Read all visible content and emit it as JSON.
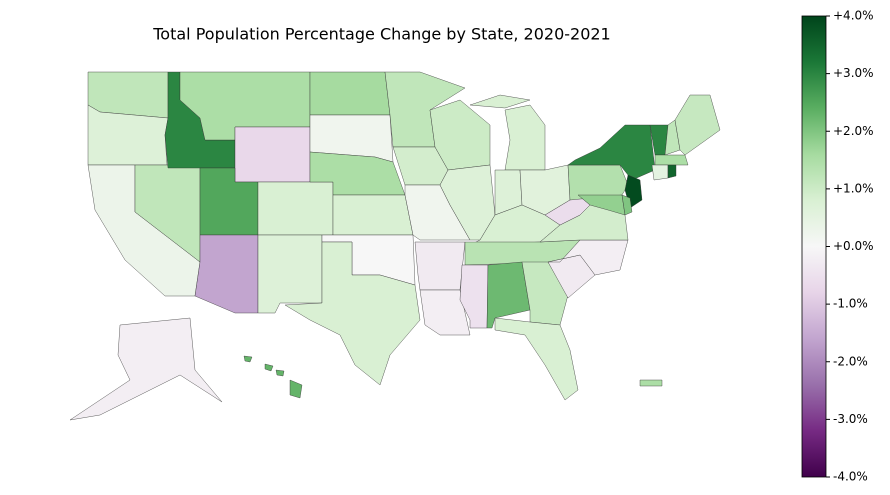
{
  "chart_data": {
    "type": "choropleth",
    "title": "Total Population Percentage Change by State, 2020-2021",
    "colormap": "PRGn",
    "values": [
      1.2,
      0.7,
      0.3,
      1.2,
      3.0,
      1.5,
      -0.7,
      2.5,
      0.8,
      -1.6,
      0.7,
      1.6,
      0.2,
      1.5,
      0.8,
      0.0,
      0.8,
      1.2,
      0.9,
      0.2,
      -0.3,
      -0.2,
      1.0,
      0.7,
      0.8,
      0.7,
      0.6,
      0.8,
      1.3,
      -0.5,
      2.2,
      1.1,
      0.8,
      -0.3,
      -0.2,
      0.9,
      -0.6,
      1.4,
      3.0,
      3.9,
      1.8,
      2.0,
      3.0,
      1.2,
      1.1,
      1.5,
      0.5,
      3.5,
      -0.2,
      2.3,
      1.5
    ],
    "clim": [
      -4,
      4
    ],
    "cticks": [
      {
        "value": 4,
        "label": "+4.0%"
      },
      {
        "value": 3,
        "label": "+3.0%"
      },
      {
        "value": 2,
        "label": "+2.0%"
      },
      {
        "value": 1,
        "label": "+1.0%"
      },
      {
        "value": 0,
        "label": "+0.0%"
      },
      {
        "value": -1,
        "label": "-1.0%"
      },
      {
        "value": -2,
        "label": "-2.0%"
      },
      {
        "value": -3,
        "label": "-3.0%"
      },
      {
        "value": -4,
        "label": "-4.0%"
      }
    ]
  }
}
